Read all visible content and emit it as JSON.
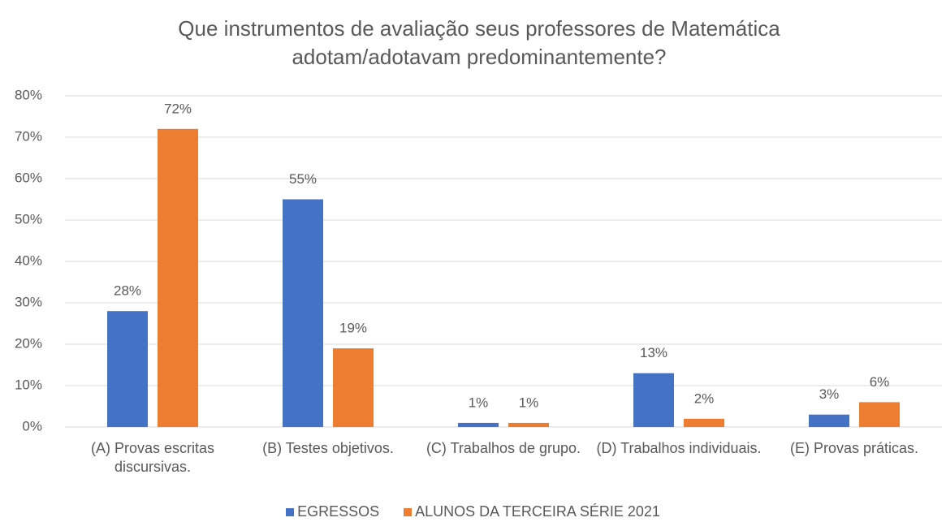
{
  "chart_data": {
    "type": "bar",
    "title": "Que instrumentos de avaliação seus professores de Matemática adotam/adotavam predominantemente?",
    "categories": [
      "(A) Provas escritas discursivas.",
      "(B) Testes objetivos.",
      "(C) Trabalhos de grupo.",
      "(D) Trabalhos individuais.",
      "(E) Provas práticas."
    ],
    "series": [
      {
        "name": "EGRESSOS",
        "color": "#4472c4",
        "values": [
          28,
          55,
          1,
          13,
          3
        ],
        "value_labels": [
          "28%",
          "55%",
          "1%",
          "13%",
          "3%"
        ]
      },
      {
        "name": "ALUNOS DA TERCEIRA SÉRIE 2021",
        "color": "#ed7d31",
        "values": [
          72,
          19,
          1,
          2,
          6
        ],
        "value_labels": [
          "72%",
          "19%",
          "1%",
          "2%",
          "6%"
        ]
      }
    ],
    "ylim": [
      0,
      80
    ],
    "yticks": [
      {
        "value": 0,
        "label": "0%"
      },
      {
        "value": 10,
        "label": "10%"
      },
      {
        "value": 20,
        "label": "20%"
      },
      {
        "value": 30,
        "label": "30%"
      },
      {
        "value": 40,
        "label": "40%"
      },
      {
        "value": 50,
        "label": "50%"
      },
      {
        "value": 60,
        "label": "60%"
      },
      {
        "value": 70,
        "label": "70%"
      },
      {
        "value": 80,
        "label": "80%"
      }
    ],
    "grid": true,
    "legend": "bottom"
  }
}
